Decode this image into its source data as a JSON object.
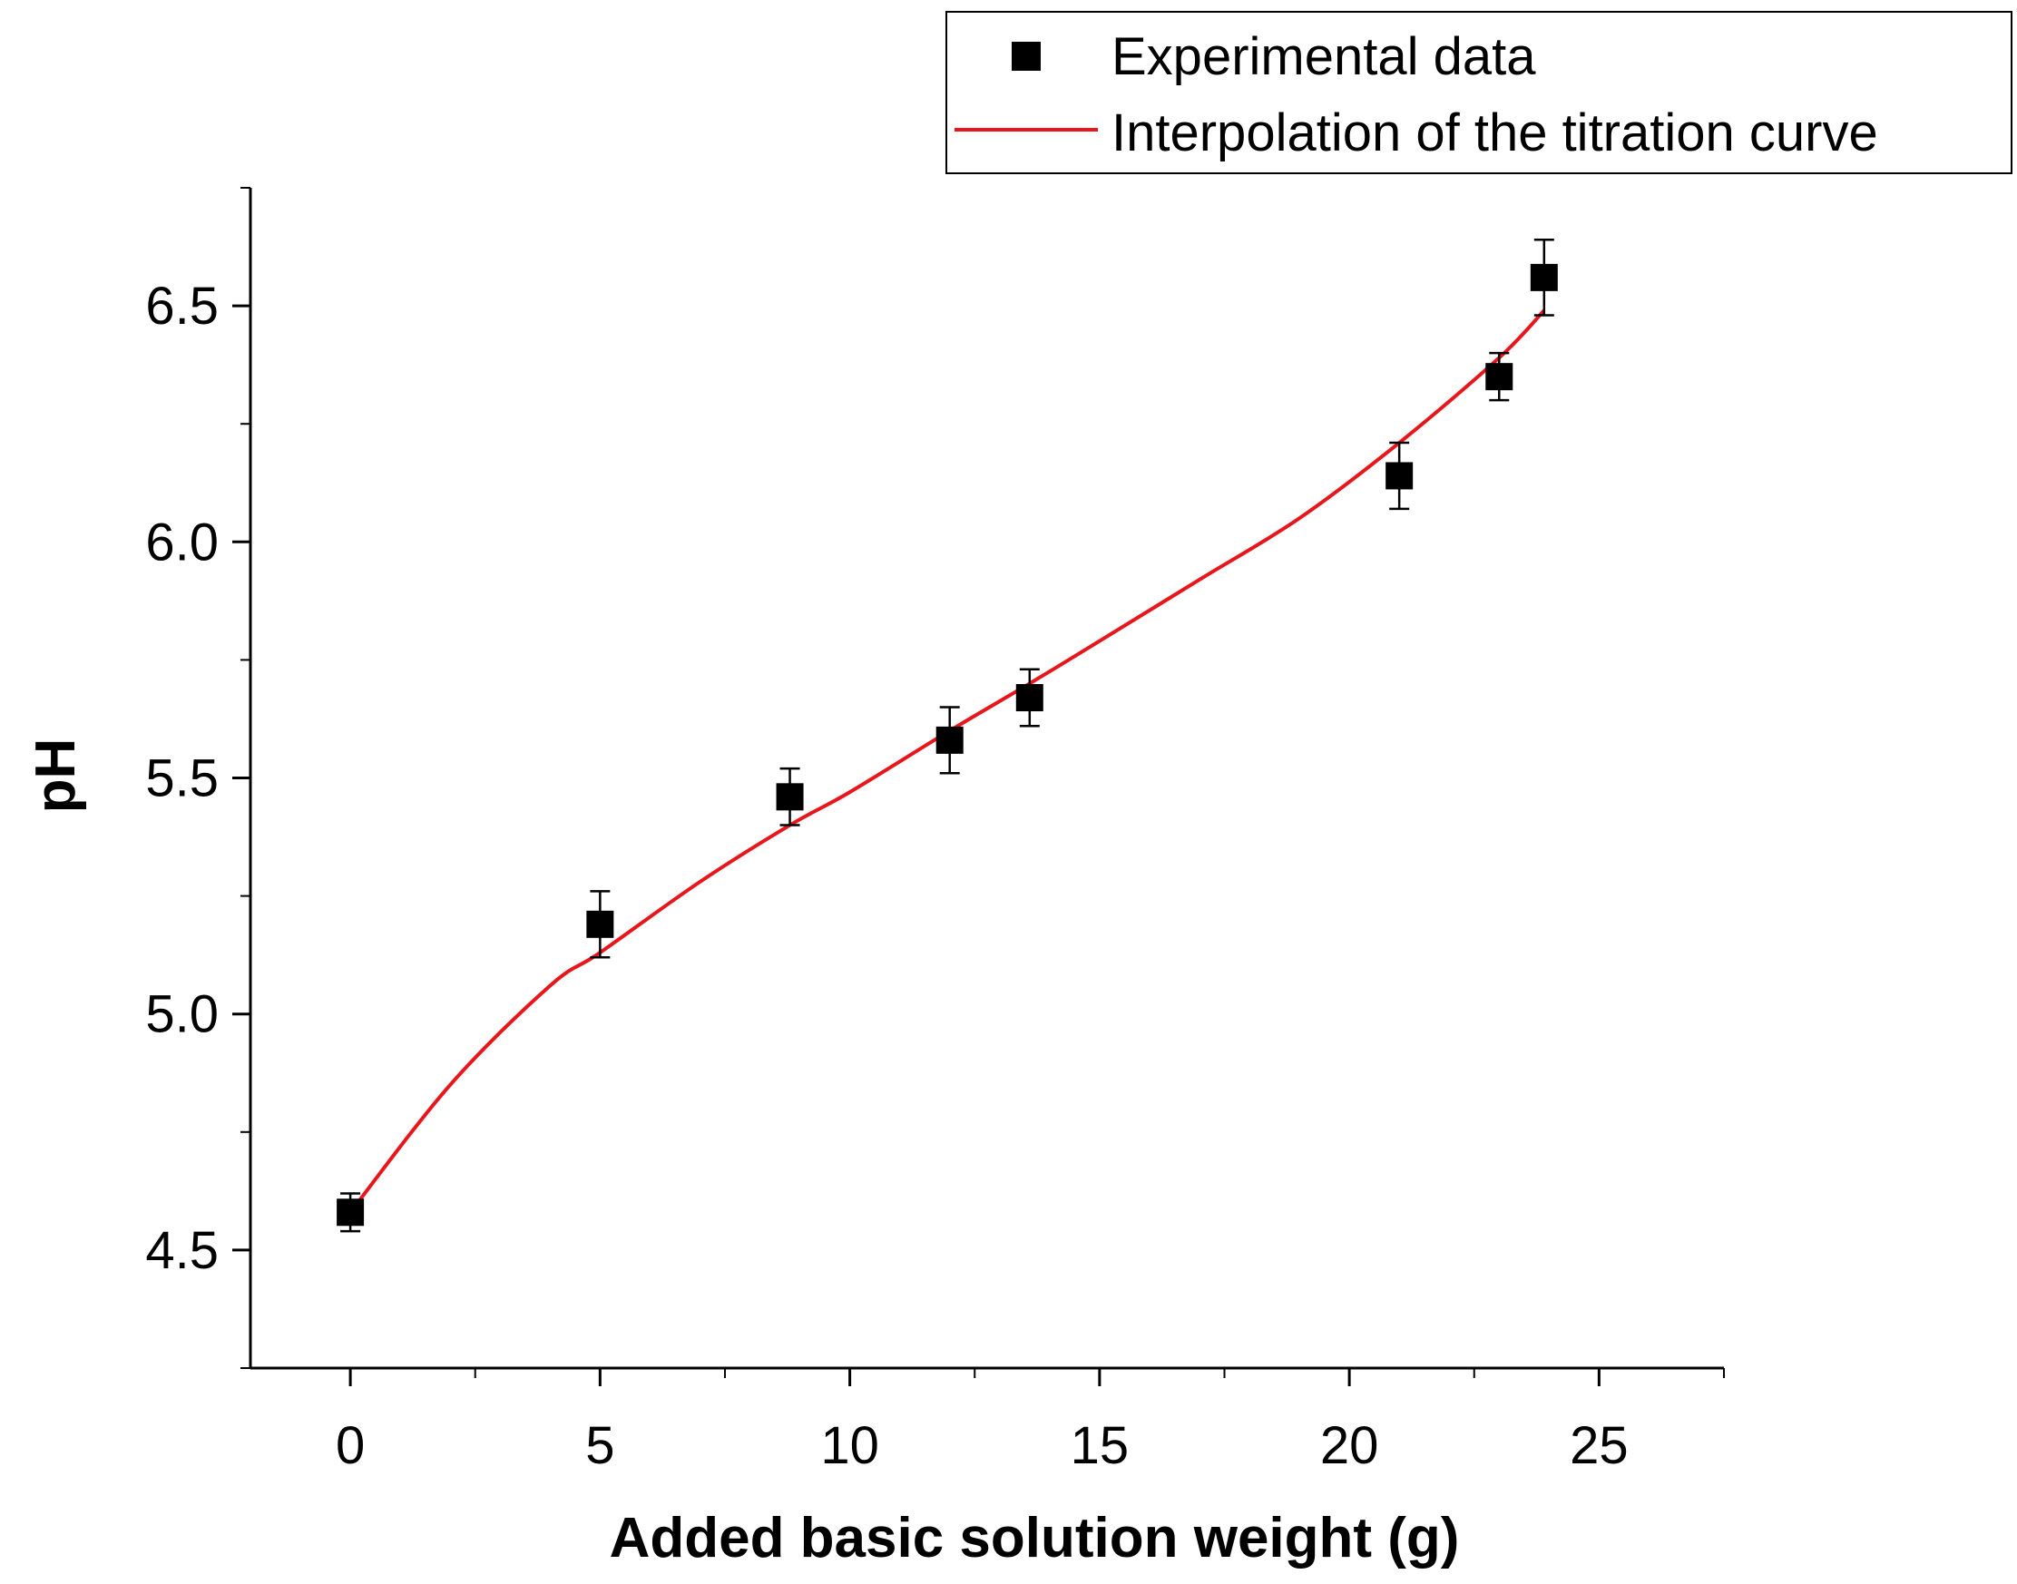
{
  "chart_data": {
    "type": "scatter",
    "title": "",
    "xlabel": "Added basic solution weight (g)",
    "ylabel": "pH",
    "xlim": [
      -2,
      27.5
    ],
    "ylim": [
      4.25,
      6.75
    ],
    "x_ticks": [
      0,
      5,
      10,
      15,
      20,
      25
    ],
    "x_tick_labels": [
      "0",
      "5",
      "10",
      "15",
      "20",
      "25"
    ],
    "y_ticks": [
      4.5,
      5.0,
      5.5,
      6.0,
      6.5
    ],
    "y_tick_labels": [
      "4.5",
      "5.0",
      "5.5",
      "6.0",
      "6.5"
    ],
    "grid": false,
    "legend_position": "top-right",
    "series": [
      {
        "name": "Experimental data",
        "kind": "points",
        "color": "#000000",
        "x": [
          0,
          5.0,
          8.8,
          12.0,
          13.6,
          21.0,
          23.0,
          23.9
        ],
        "y": [
          4.58,
          5.19,
          5.46,
          5.58,
          5.67,
          6.14,
          6.35,
          6.56
        ],
        "err": [
          0.04,
          0.07,
          0.06,
          0.07,
          0.06,
          0.07,
          0.05,
          0.08
        ]
      },
      {
        "name": "Interpolation of the titration curve",
        "kind": "line",
        "color": "#e8161b",
        "x": [
          0,
          2,
          4,
          5,
          7,
          8.8,
          10,
          12,
          13.6,
          15,
          17,
          19,
          21,
          23,
          23.9
        ],
        "y": [
          4.58,
          4.85,
          5.06,
          5.13,
          5.28,
          5.4,
          5.47,
          5.6,
          5.7,
          5.79,
          5.92,
          6.05,
          6.21,
          6.39,
          6.49
        ]
      }
    ]
  }
}
